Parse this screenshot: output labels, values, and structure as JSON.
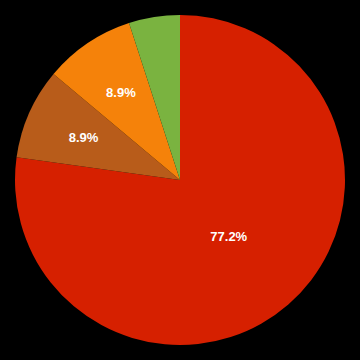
{
  "chart_data": {
    "type": "pie",
    "values": [
      77.2,
      8.9,
      8.9,
      5.0
    ],
    "value_labels": [
      "77.2%",
      "8.9%",
      "8.9%",
      null
    ],
    "colors": [
      "#d62000",
      "#b85c1a",
      "#f5820a",
      "#7ab340"
    ],
    "data_labels": true
  }
}
